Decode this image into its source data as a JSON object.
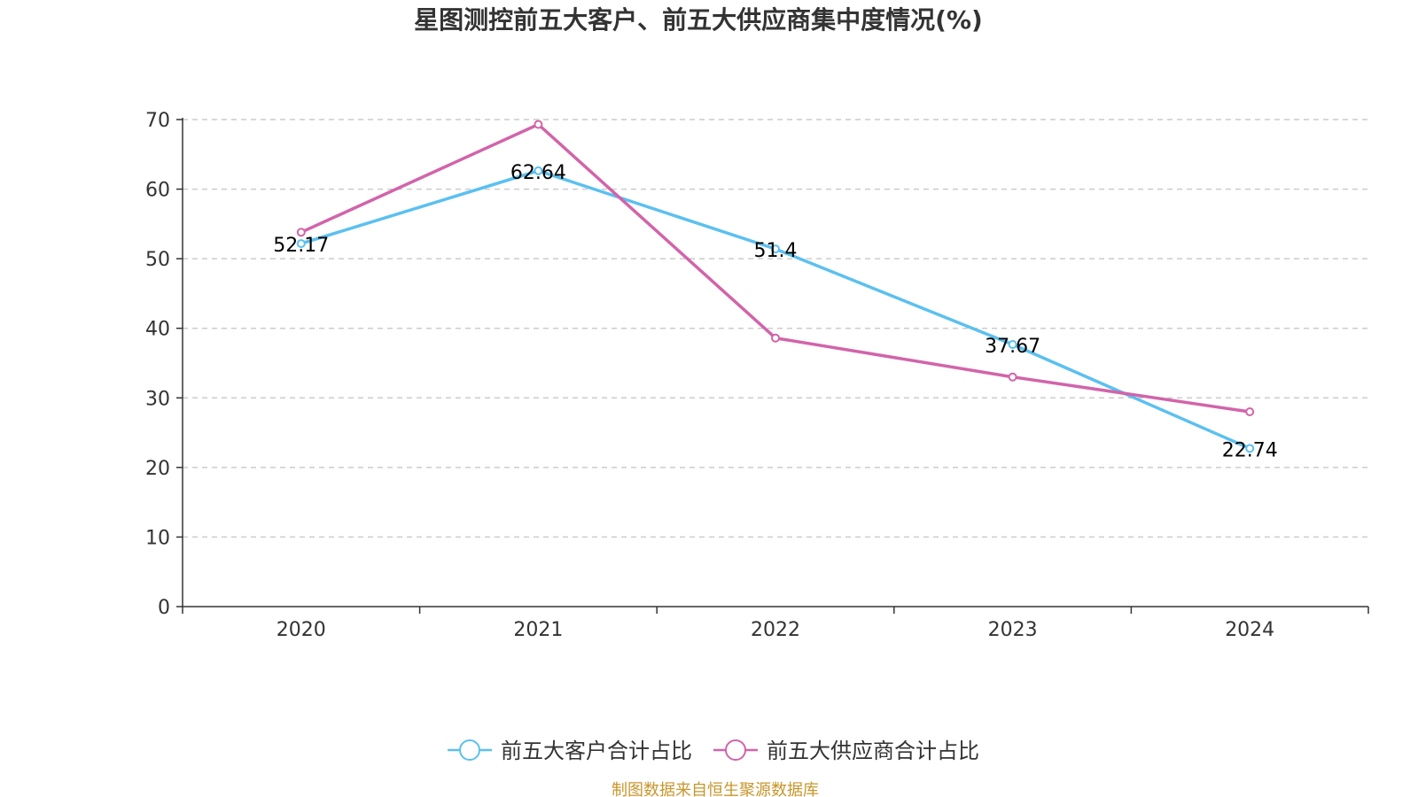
{
  "chart_data": {
    "type": "line",
    "title": "星图测控前五大客户、前五大供应商集中度情况(%)",
    "categories": [
      "2020",
      "2021",
      "2022",
      "2023",
      "2024"
    ],
    "ylim": [
      0,
      70
    ],
    "yticks": [
      "0",
      "10",
      "20",
      "30",
      "40",
      "50",
      "60",
      "70"
    ],
    "grid": true,
    "legend_position": "bottom",
    "series": [
      {
        "name": "前五大客户合计占比",
        "color": "#5bc0f0",
        "values": [
          52.17,
          62.64,
          51.4,
          37.67,
          22.74
        ],
        "labels": [
          "52.17",
          "62.64",
          "51.4",
          "37.67",
          "22.74"
        ]
      },
      {
        "name": "前五大供应商合计占比",
        "color": "#d264aa",
        "values": [
          53.8,
          69.3,
          38.6,
          33.0,
          28.0
        ]
      }
    ]
  },
  "source": "制图数据来自恒生聚源数据库"
}
